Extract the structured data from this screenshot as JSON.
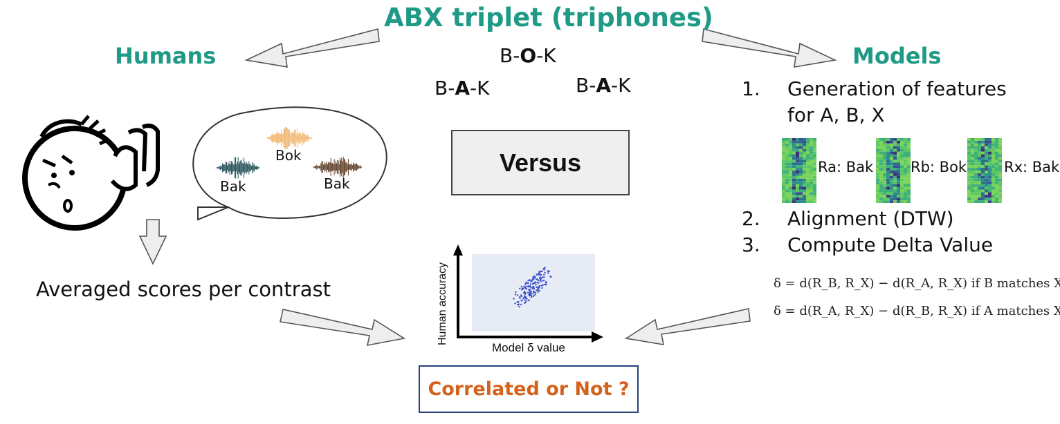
{
  "title": "ABX triplet (triphones)",
  "humans_heading": "Humans",
  "models_heading": "Models",
  "triphone_x": {
    "pre": "B-",
    "mid": "O",
    "post": "-K"
  },
  "triphone_a": {
    "pre": "B-",
    "mid": "A",
    "post": "-K"
  },
  "triphone_b": {
    "pre": "B-",
    "mid": "A",
    "post": "-K"
  },
  "versus_label": "Versus",
  "speech_bubble": {
    "labels": [
      "Bak",
      "Bok",
      "Bak"
    ],
    "colors": [
      "#1b4b52",
      "#f2b36a",
      "#5b3a24"
    ]
  },
  "averaged_label": "Averaged scores per contrast",
  "steps": [
    {
      "num": "1.",
      "line1": "Generation of features",
      "line2": "for A, B, X"
    },
    {
      "num": "2.",
      "line1": "Alignment (DTW)"
    },
    {
      "num": "3.",
      "line1": "Compute Delta Value"
    }
  ],
  "representations": [
    "Ra: Bak",
    "Rb: Bok",
    "Rx: Bak"
  ],
  "formulas": [
    "δ = d(R_B, R_X) − d(R_A, R_X)  if B matches X",
    "δ = d(R_A, R_X) − d(R_B, R_X)  if A matches X"
  ],
  "scatter": {
    "ylabel": "Human accuracy",
    "xlabel": "Model δ value",
    "point_color": "#3a4fc9",
    "background": "#e6ebf5"
  },
  "conclusion": "Correlated or Not ?",
  "colors": {
    "accent": "#1f9a86",
    "conclusion_text": "#d4621c",
    "conclusion_border": "#24417a"
  }
}
